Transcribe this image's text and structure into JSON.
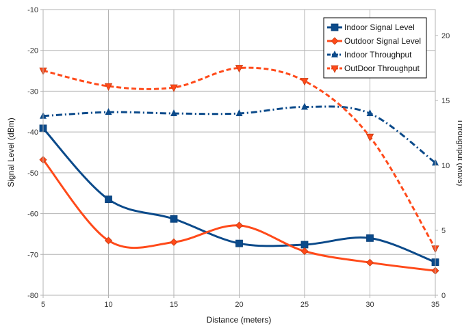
{
  "chart_data": {
    "type": "line",
    "x": [
      5,
      10,
      15,
      20,
      25,
      30,
      35
    ],
    "xlabel": "Distance (meters)",
    "ylabel_left": "Signal Level (dBm)",
    "ylabel_right": "Throughput (Mb/s)",
    "xlim": [
      5,
      35
    ],
    "ylim_left": [
      -80,
      -10
    ],
    "ylim_right": [
      0,
      22
    ],
    "xticks": [
      5,
      10,
      15,
      20,
      25,
      30,
      35
    ],
    "yticks_left": [
      -10,
      -20,
      -30,
      -40,
      -50,
      -60,
      -70,
      -80
    ],
    "yticks_right": [
      0,
      5,
      10,
      15,
      20
    ],
    "grid": true,
    "legend_position": "top-right",
    "series": [
      {
        "name": "Indoor Signal Level",
        "axis": "left",
        "color": "#0b4a8a",
        "marker": "square",
        "dash": "solid",
        "values": [
          -39.1,
          -56.5,
          -61.3,
          -67.3,
          -67.6,
          -66.0,
          -71.9
        ]
      },
      {
        "name": "Outdoor Signal Level",
        "axis": "left",
        "color": "#ff4a1a",
        "marker": "diamond",
        "dash": "solid",
        "values": [
          -46.8,
          -66.6,
          -67.0,
          -62.9,
          -69.2,
          -72.0,
          -74.0
        ]
      },
      {
        "name": "Indoor Throughput",
        "axis": "right",
        "color": "#0b4a8a",
        "marker": "triangle-up",
        "dash": "dashdot",
        "values": [
          13.8,
          14.1,
          14.0,
          14.0,
          14.5,
          14.0,
          10.2
        ]
      },
      {
        "name": "OutDoor Throughput",
        "axis": "right",
        "color": "#ff4a1a",
        "marker": "triangle-down",
        "dash": "dashed",
        "values": [
          17.3,
          16.1,
          16.0,
          17.5,
          16.5,
          12.2,
          3.6
        ]
      }
    ]
  }
}
